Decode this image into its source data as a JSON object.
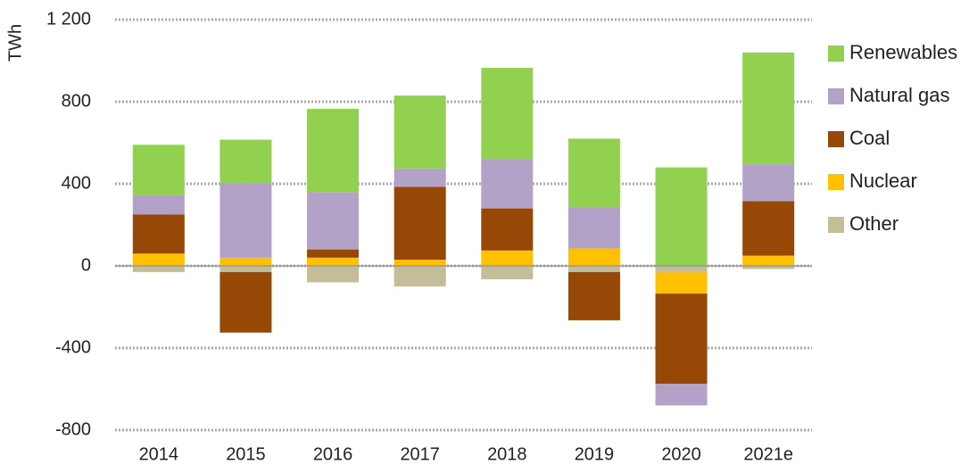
{
  "chart_data": {
    "type": "stacked_bar",
    "y_label": "TWh",
    "categories": [
      "2014",
      "2015",
      "2016",
      "2017",
      "2018",
      "2019",
      "2020",
      "2021e"
    ],
    "series": [
      {
        "name": "Renewables",
        "color": "#92d050",
        "values": [
          245,
          210,
          405,
          355,
          445,
          335,
          480,
          545
        ]
      },
      {
        "name": "Natural gas",
        "color": "#b3a2c7",
        "values": [
          95,
          365,
          280,
          90,
          240,
          200,
          -105,
          180
        ]
      },
      {
        "name": "Coal",
        "color": "#974706",
        "values": [
          190,
          -295,
          40,
          355,
          205,
          -235,
          -440,
          265
        ]
      },
      {
        "name": "Nuclear",
        "color": "#ffc000",
        "values": [
          60,
          40,
          40,
          30,
          75,
          85,
          -105,
          50
        ]
      },
      {
        "name": "Other",
        "color": "#c4bd97",
        "values": [
          -30,
          -30,
          -80,
          -100,
          -65,
          -30,
          -30,
          -15
        ]
      }
    ],
    "ylim": [
      -800,
      1200
    ],
    "yticks": [
      -800,
      -400,
      0,
      400,
      800,
      {
        "value": 1200,
        "label": "1 200"
      }
    ],
    "grid": true
  }
}
